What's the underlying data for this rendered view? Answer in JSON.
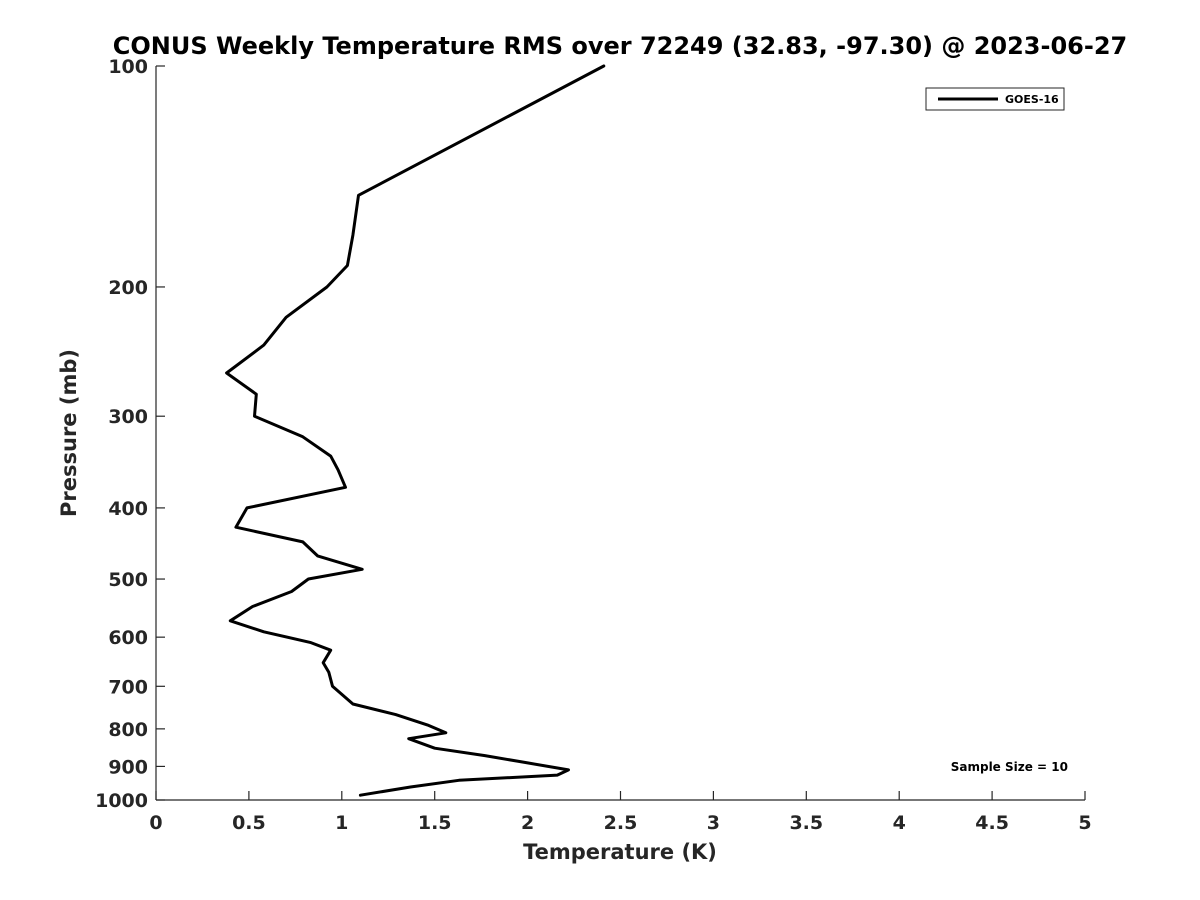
{
  "chart_data": {
    "type": "line",
    "title": "CONUS Weekly Temperature RMS over 72249 (32.83, -97.30) @ 2023-06-27",
    "xlabel": "Temperature (K)",
    "ylabel": "Pressure (mb)",
    "xlim": [
      0,
      5
    ],
    "ylim": [
      100,
      1000
    ],
    "y_scale": "log",
    "y_reversed": true,
    "grid": false,
    "legend_position": "top-right",
    "x_ticks": [
      "0",
      "0.5",
      "1",
      "1.5",
      "2",
      "2.5",
      "3",
      "3.5",
      "4",
      "4.5",
      "5"
    ],
    "y_ticks": [
      "100",
      "200",
      "300",
      "400",
      "500",
      "600",
      "700",
      "800",
      "900",
      "1000"
    ],
    "annotation": "Sample Size = 10",
    "series": [
      {
        "name": "GOES-16",
        "color": "#000000",
        "points": [
          [
            2.41,
            100
          ],
          [
            1.09,
            150
          ],
          [
            1.06,
            170
          ],
          [
            1.03,
            187
          ],
          [
            0.92,
            200
          ],
          [
            0.7,
            220
          ],
          [
            0.58,
            240
          ],
          [
            0.38,
            262
          ],
          [
            0.54,
            280
          ],
          [
            0.53,
            300
          ],
          [
            0.79,
            320
          ],
          [
            0.94,
            340
          ],
          [
            0.98,
            355
          ],
          [
            1.02,
            375
          ],
          [
            0.49,
            400
          ],
          [
            0.43,
            425
          ],
          [
            0.79,
            445
          ],
          [
            0.87,
            465
          ],
          [
            1.11,
            485
          ],
          [
            0.82,
            500
          ],
          [
            0.73,
            520
          ],
          [
            0.52,
            545
          ],
          [
            0.4,
            570
          ],
          [
            0.58,
            590
          ],
          [
            0.83,
            610
          ],
          [
            0.94,
            625
          ],
          [
            0.9,
            650
          ],
          [
            0.93,
            670
          ],
          [
            0.95,
            700
          ],
          [
            1.06,
            740
          ],
          [
            1.29,
            765
          ],
          [
            1.46,
            790
          ],
          [
            1.56,
            810
          ],
          [
            1.36,
            825
          ],
          [
            1.5,
            850
          ],
          [
            1.77,
            870
          ],
          [
            2.0,
            890
          ],
          [
            2.22,
            910
          ],
          [
            2.16,
            925
          ],
          [
            1.63,
            940
          ],
          [
            1.37,
            960
          ],
          [
            1.1,
            985
          ]
        ]
      }
    ]
  }
}
